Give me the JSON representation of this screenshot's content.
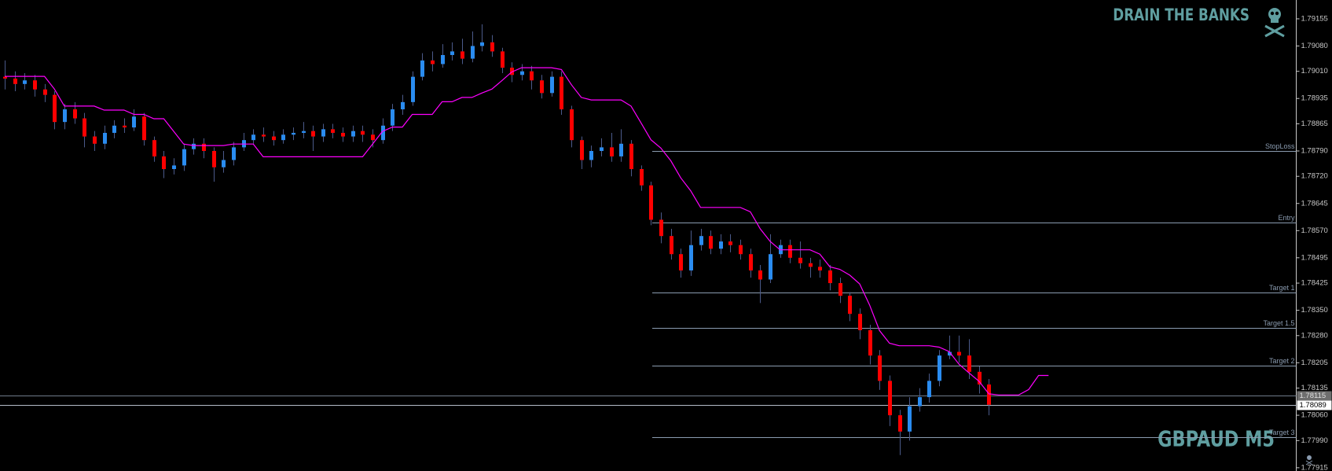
{
  "chart_data": {
    "type": "candlestick",
    "watermark": "DRAIN THE BANKS",
    "symbol": "GBPAUD M5",
    "ylim": [
      1.77906,
      1.79207
    ],
    "yticks": [
      1.79155,
      {
        "value": 1.7908,
        "label": "1.79080"
      },
      {
        "value": 1.7901,
        "label": "1.79010"
      },
      1.78935,
      1.78865,
      {
        "value": 1.7879,
        "label": "1.78790"
      },
      {
        "value": 1.7872,
        "label": "1.78720"
      },
      1.78645,
      {
        "value": 1.7857,
        "label": "1.78570"
      },
      1.78495,
      1.78425,
      {
        "value": 1.7835,
        "label": "1.78350"
      },
      {
        "value": 1.7828,
        "label": "1.78280"
      },
      1.78205,
      1.78135,
      {
        "value": 1.7806,
        "label": "1.78060"
      },
      {
        "value": 1.7799,
        "label": "1.77990"
      },
      1.77915
    ],
    "up_color": "#2a8cf0",
    "down_color": "#ff0000",
    "wick_color": "#4b5a8a",
    "open": [
      1.78995,
      1.7899,
      1.78975,
      1.78985,
      1.7896,
      1.78945,
      1.7887,
      1.78905,
      1.7888,
      1.7883,
      1.7881,
      1.7884,
      1.7886,
      1.78855,
      1.78885,
      1.7882,
      1.78775,
      1.7874,
      1.7875,
      1.78795,
      1.7881,
      1.7879,
      1.78745,
      1.78765,
      1.788,
      1.7882,
      1.78835,
      1.7883,
      1.7882,
      1.78835,
      1.7884,
      1.78845,
      1.7883,
      1.7885,
      1.7884,
      1.7883,
      1.78845,
      1.78835,
      1.7882,
      1.7886,
      1.78905,
      1.78925,
      1.78995,
      1.7904,
      1.7903,
      1.79055,
      1.79065,
      1.79045,
      1.7908,
      1.7909,
      1.79065,
      1.7902,
      1.79,
      1.7901,
      1.78985,
      1.7895,
      1.78995,
      1.78905,
      1.7882,
      1.78765,
      1.7879,
      1.788,
      1.78775,
      1.7881,
      1.7874,
      1.78695,
      1.786,
      1.78555,
      1.78505,
      1.7846,
      1.7853,
      1.78555,
      1.7852,
      1.7854,
      1.7853,
      1.78505,
      1.7846,
      1.78435,
      1.78505,
      1.7853,
      1.78495,
      1.7848,
      1.7847,
      1.7846,
      1.78425,
      1.7839,
      1.7834,
      1.78295,
      1.78225,
      1.78155,
      1.7806,
      1.78015,
      1.78085,
      1.7811,
      1.78155,
      1.78225,
      1.78235,
      1.78225,
      1.7818,
      1.78145
    ],
    "high": [
      1.7904,
      1.7901,
      1.79005,
      1.79,
      1.78975,
      1.78955,
      1.7892,
      1.78925,
      1.78895,
      1.78845,
      1.7886,
      1.78875,
      1.7888,
      1.78905,
      1.78895,
      1.7883,
      1.7879,
      1.7877,
      1.7881,
      1.78825,
      1.78825,
      1.788,
      1.7879,
      1.78815,
      1.7884,
      1.7885,
      1.78855,
      1.78845,
      1.7885,
      1.78855,
      1.7887,
      1.7886,
      1.78865,
      1.78865,
      1.78855,
      1.7886,
      1.7886,
      1.7885,
      1.7888,
      1.7892,
      1.78945,
      1.7901,
      1.7906,
      1.79065,
      1.79085,
      1.7909,
      1.791,
      1.7912,
      1.7914,
      1.7911,
      1.79075,
      1.79035,
      1.7903,
      1.79025,
      1.79,
      1.7901,
      1.7901,
      1.78915,
      1.7883,
      1.78805,
      1.78825,
      1.7884,
      1.7885,
      1.7882,
      1.7875,
      1.78705,
      1.7862,
      1.78575,
      1.7852,
      1.7857,
      1.78575,
      1.7857,
      1.7856,
      1.7856,
      1.78545,
      1.7852,
      1.78475,
      1.7856,
      1.78545,
      1.78545,
      1.7854,
      1.78495,
      1.7849,
      1.78475,
      1.7844,
      1.784,
      1.78355,
      1.7831,
      1.7824,
      1.7817,
      1.78075,
      1.7811,
      1.78135,
      1.78175,
      1.7824,
      1.7828,
      1.7828,
      1.7827,
      1.78195,
      1.7816
    ],
    "low": [
      1.7896,
      1.78955,
      1.7896,
      1.7894,
      1.78925,
      1.7885,
      1.7885,
      1.78865,
      1.788,
      1.7879,
      1.78795,
      1.78825,
      1.7884,
      1.78845,
      1.78805,
      1.7876,
      1.78715,
      1.78725,
      1.78735,
      1.7878,
      1.7877,
      1.78705,
      1.7873,
      1.7875,
      1.7879,
      1.7881,
      1.78815,
      1.78805,
      1.7881,
      1.7882,
      1.78825,
      1.7879,
      1.78815,
      1.78825,
      1.78815,
      1.78815,
      1.78815,
      1.788,
      1.7881,
      1.78845,
      1.7889,
      1.78915,
      1.78985,
      1.7901,
      1.7902,
      1.7904,
      1.7903,
      1.79035,
      1.79065,
      1.7905,
      1.79005,
      1.7898,
      1.78985,
      1.7896,
      1.78935,
      1.7894,
      1.7889,
      1.788,
      1.7874,
      1.78745,
      1.78775,
      1.7876,
      1.7876,
      1.7872,
      1.7868,
      1.78585,
      1.78535,
      1.7849,
      1.7844,
      1.78445,
      1.78515,
      1.78505,
      1.78505,
      1.7851,
      1.7849,
      1.7844,
      1.7837,
      1.78425,
      1.78495,
      1.7848,
      1.78465,
      1.7844,
      1.7844,
      1.78405,
      1.7837,
      1.7832,
      1.7827,
      1.782,
      1.7813,
      1.7803,
      1.7795,
      1.7799,
      1.7807,
      1.78095,
      1.7814,
      1.78215,
      1.78205,
      1.7816,
      1.7812,
      1.7806
    ],
    "close": [
      1.7899,
      1.78975,
      1.78985,
      1.7896,
      1.78945,
      1.7887,
      1.78905,
      1.7888,
      1.7883,
      1.7881,
      1.7884,
      1.7886,
      1.78855,
      1.78885,
      1.7882,
      1.78775,
      1.7874,
      1.7875,
      1.78795,
      1.7881,
      1.7879,
      1.78745,
      1.78765,
      1.788,
      1.7882,
      1.78835,
      1.7883,
      1.7882,
      1.78835,
      1.7884,
      1.78845,
      1.7883,
      1.7885,
      1.7884,
      1.7883,
      1.78845,
      1.78835,
      1.7882,
      1.7886,
      1.78905,
      1.78925,
      1.78995,
      1.7904,
      1.7903,
      1.79055,
      1.79065,
      1.79045,
      1.7908,
      1.7909,
      1.79065,
      1.7902,
      1.79,
      1.7901,
      1.78985,
      1.7895,
      1.78995,
      1.78905,
      1.7882,
      1.78765,
      1.7879,
      1.788,
      1.78775,
      1.7881,
      1.7874,
      1.78695,
      1.786,
      1.78555,
      1.78505,
      1.7846,
      1.7853,
      1.78555,
      1.7852,
      1.7854,
      1.7853,
      1.78505,
      1.7846,
      1.78435,
      1.78505,
      1.7853,
      1.78495,
      1.7848,
      1.7847,
      1.7846,
      1.78425,
      1.7839,
      1.7834,
      1.78295,
      1.78225,
      1.78155,
      1.7806,
      1.78015,
      1.78085,
      1.7811,
      1.78155,
      1.78225,
      1.78235,
      1.78225,
      1.7818,
      1.78145,
      1.78089
    ],
    "indicator": {
      "color": "#ff00ff",
      "values": [
        1.78996,
        1.78996,
        1.78996,
        1.78996,
        1.78996,
        1.78961,
        1.78914,
        1.78914,
        1.78914,
        1.78914,
        1.78903,
        1.78903,
        1.78903,
        1.78891,
        1.78891,
        1.78879,
        1.78879,
        1.78844,
        1.78809,
        1.78805,
        1.78805,
        1.78805,
        1.78805,
        1.78809,
        1.78809,
        1.78809,
        1.78774,
        1.78774,
        1.78774,
        1.78774,
        1.78774,
        1.78774,
        1.78774,
        1.78774,
        1.78774,
        1.78774,
        1.78774,
        1.78809,
        1.78844,
        1.78856,
        1.78856,
        1.78891,
        1.78891,
        1.78891,
        1.78926,
        1.78926,
        1.78938,
        1.78938,
        1.7895,
        1.78961,
        1.78984,
        1.79008,
        1.7902,
        1.7902,
        1.7902,
        1.7902,
        1.79015,
        1.78973,
        1.78938,
        1.78931,
        1.78931,
        1.78931,
        1.78931,
        1.78914,
        1.78868,
        1.78821,
        1.78798,
        1.78763,
        1.78716,
        1.7868,
        1.78634,
        1.78634,
        1.78634,
        1.78634,
        1.78634,
        1.78622,
        1.78575,
        1.7854,
        1.78517,
        1.78517,
        1.78517,
        1.78517,
        1.78505,
        1.7847,
        1.78463,
        1.78447,
        1.78423,
        1.78365,
        1.78294,
        1.78259,
        1.78252,
        1.78252,
        1.78252,
        1.78252,
        1.78248,
        1.78236,
        1.78201,
        1.78177,
        1.78154,
        1.78119,
        1.78116,
        1.78116,
        1.78116,
        1.78131,
        1.7817,
        1.7817
      ]
    },
    "level_color": "#8a9bb0",
    "levels": [
      {
        "label": "StopLoss",
        "value": 1.7879
      },
      {
        "label": "Entry",
        "value": 1.78593
      },
      {
        "label": "Target 1",
        "value": 1.78399
      },
      {
        "label": "Target 1.5",
        "value": 1.78301
      },
      {
        "label": "Target 2",
        "value": 1.78198
      },
      {
        "label": "Target 3",
        "value": 1.77999
      }
    ],
    "price_lines": [
      1.78115,
      1.78089
    ]
  }
}
